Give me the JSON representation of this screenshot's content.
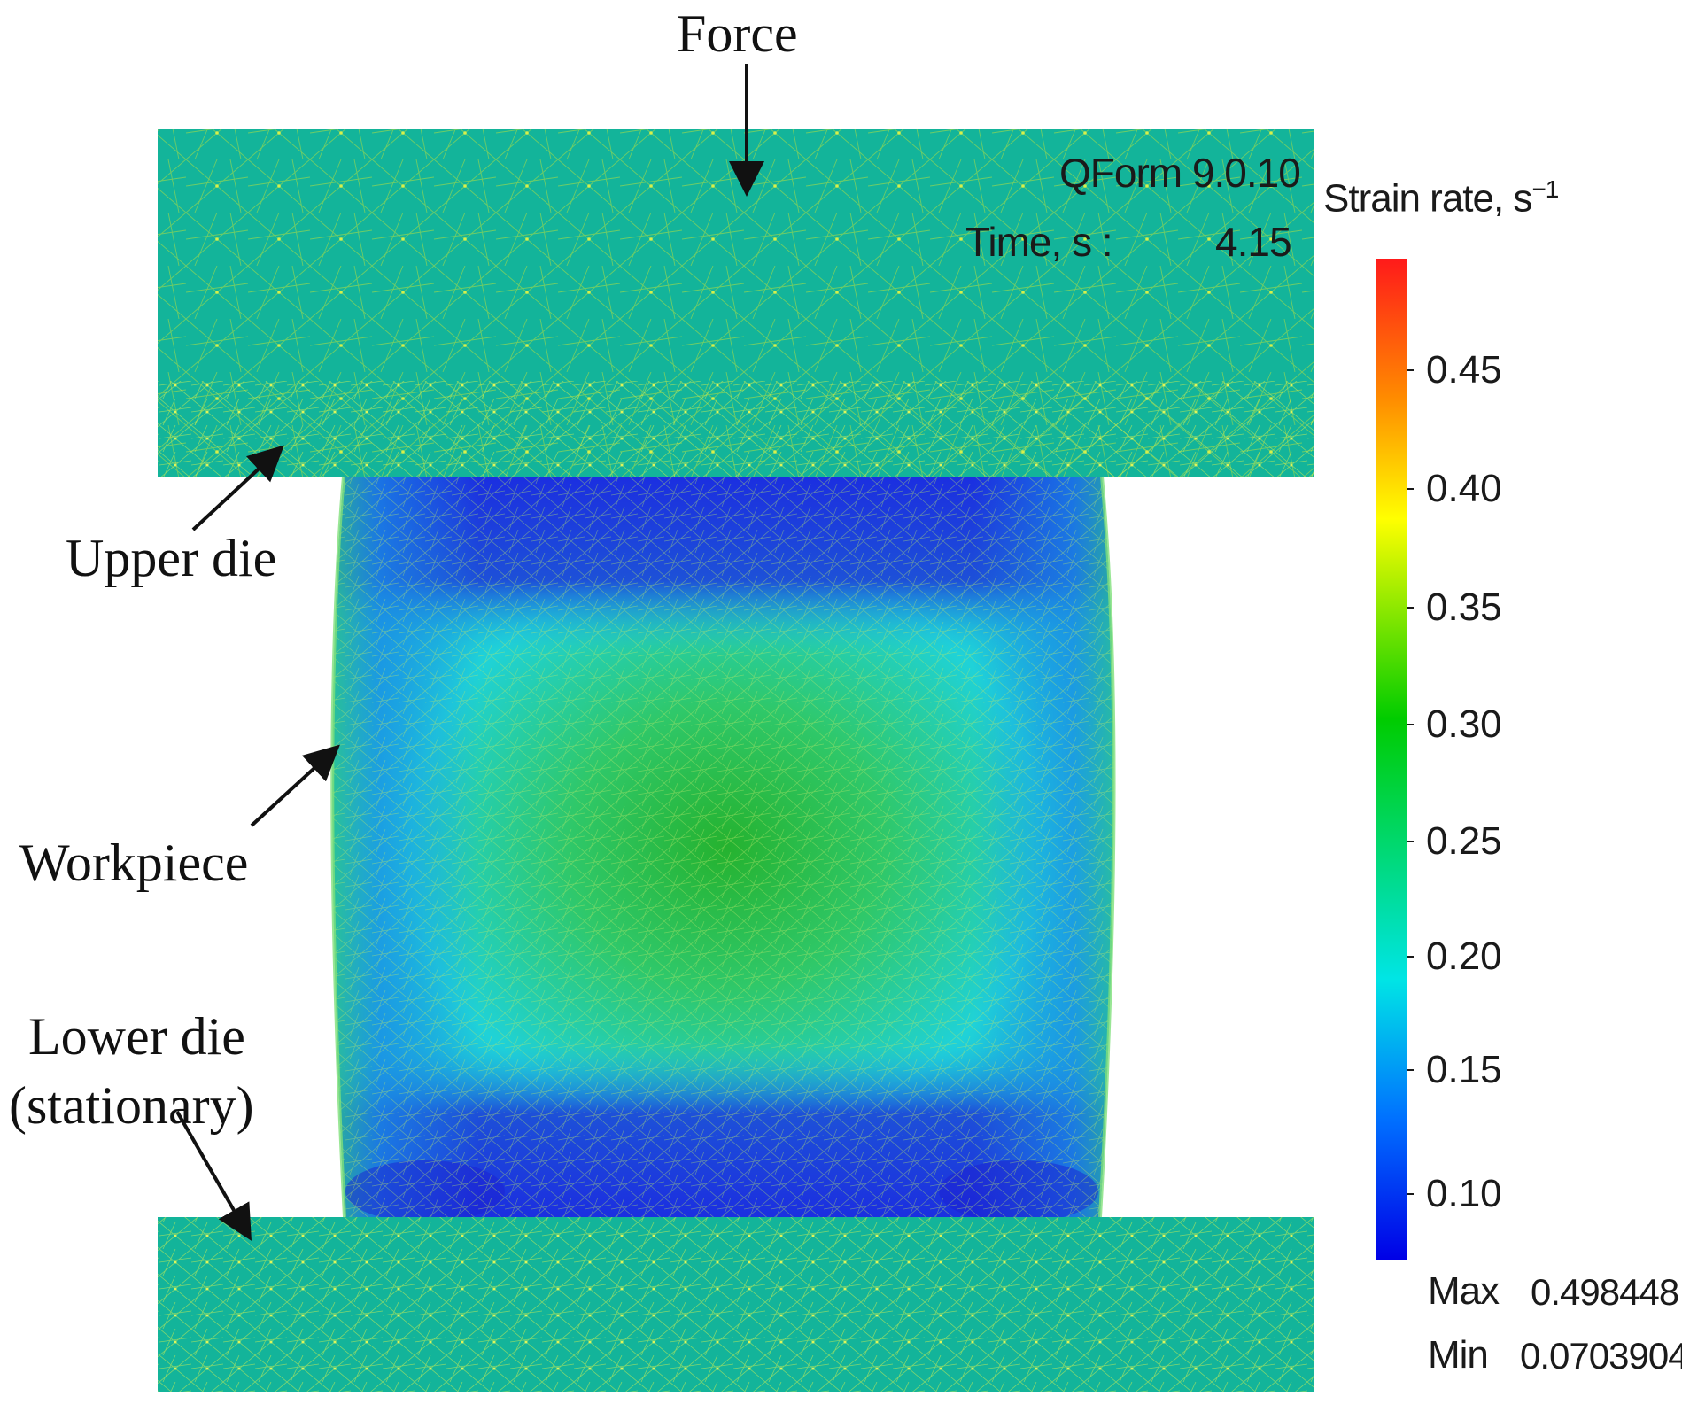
{
  "annotations": {
    "force": "Force",
    "upper_die": "Upper die",
    "workpiece": "Workpiece",
    "lower_die_line1": "Lower die",
    "lower_die_line2": "(stationary)"
  },
  "software": {
    "name": "QForm 9.0.10",
    "time_label": "Time, s  :",
    "time_value": "4.15"
  },
  "legend": {
    "title": "Strain rate, s",
    "title_superscript": "−1",
    "ticks": [
      "0.45",
      "0.40",
      "0.35",
      "0.30",
      "0.25",
      "0.20",
      "0.15",
      "0.10"
    ],
    "max_label": "Max",
    "max_value": "0.498448",
    "min_label": "Min",
    "min_value": "0.0703904",
    "colors": [
      "#ff1a1a",
      "#ff8c00",
      "#ffff00",
      "#00cc00",
      "#00e5e5",
      "#0070ff",
      "#0000e6"
    ]
  },
  "colors": {
    "die": "#13b49a",
    "mesh": "#b6e03c",
    "workpiece_low": "#1b3fd8",
    "workpiece_mid": "#19d9dc",
    "workpiece_high": "#22bf4a"
  }
}
